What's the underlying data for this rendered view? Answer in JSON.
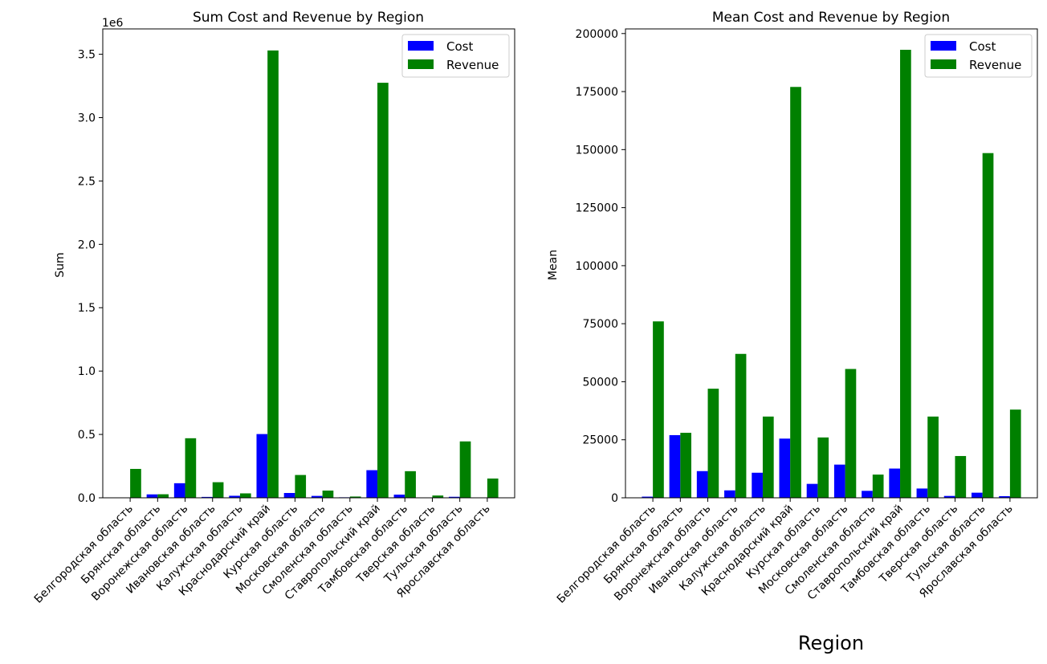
{
  "chart_data": [
    {
      "type": "bar",
      "title": "Sum Cost and Revenue by Region",
      "xlabel": "",
      "ylabel": "Sum",
      "offset_label": "1e6",
      "ylim": [
        0,
        3.7
      ],
      "yticks": [
        "0.0",
        "0.5",
        "1.0",
        "1.5",
        "2.0",
        "2.5",
        "3.0",
        "3.5"
      ],
      "ytick_values": [
        0,
        0.5,
        1.0,
        1.5,
        2.0,
        2.5,
        3.0,
        3.5
      ],
      "legend_position": "top-right",
      "grid": false,
      "categories": [
        "Белгородская область",
        "Брянская область",
        "Воронежская область",
        "Ивановская область",
        "Калужская область",
        "Краснодарский край",
        "Курская область",
        "Московская область",
        "Смоленская область",
        "Ставропольский край",
        "Тамбовская область",
        "Тверская область",
        "Тульская область",
        "Ярославская область"
      ],
      "series": [
        {
          "name": "Cost",
          "color": "#0000ff",
          "values": [
            0.002,
            0.027,
            0.115,
            0.007,
            0.016,
            0.503,
            0.038,
            0.015,
            0.004,
            0.218,
            0.025,
            0.002,
            0.008,
            0.002
          ]
        },
        {
          "name": "Revenue",
          "color": "#008000",
          "values": [
            0.228,
            0.028,
            0.47,
            0.123,
            0.035,
            3.53,
            0.18,
            0.057,
            0.01,
            3.275,
            0.21,
            0.018,
            0.445,
            0.152
          ]
        }
      ]
    },
    {
      "type": "bar",
      "title": "Mean Cost and Revenue by Region",
      "xlabel": "Region",
      "ylabel": "Mean",
      "offset_label": "",
      "ylim": [
        0,
        202000
      ],
      "yticks": [
        "0",
        "25000",
        "50000",
        "75000",
        "100000",
        "125000",
        "150000",
        "175000",
        "200000"
      ],
      "ytick_values": [
        0,
        25000,
        50000,
        75000,
        100000,
        125000,
        150000,
        175000,
        200000
      ],
      "legend_position": "top-right",
      "grid": false,
      "categories": [
        "Белгородская область",
        "Брянская область",
        "Воронежская область",
        "Ивановская область",
        "Калужская область",
        "Краснодарский край",
        "Курская область",
        "Московская область",
        "Смоленская область",
        "Ставропольский край",
        "Тамбовская область",
        "Тверская область",
        "Тульская область",
        "Ярославская область"
      ],
      "series": [
        {
          "name": "Cost",
          "color": "#0000ff",
          "values": [
            500,
            27000,
            11500,
            3200,
            10800,
            25500,
            6000,
            14300,
            3000,
            12600,
            4000,
            800,
            2200,
            700
          ]
        },
        {
          "name": "Revenue",
          "color": "#008000",
          "values": [
            76000,
            28000,
            47000,
            62000,
            35000,
            177000,
            26000,
            55500,
            10000,
            193000,
            35000,
            18000,
            148500,
            38000
          ]
        }
      ]
    }
  ]
}
